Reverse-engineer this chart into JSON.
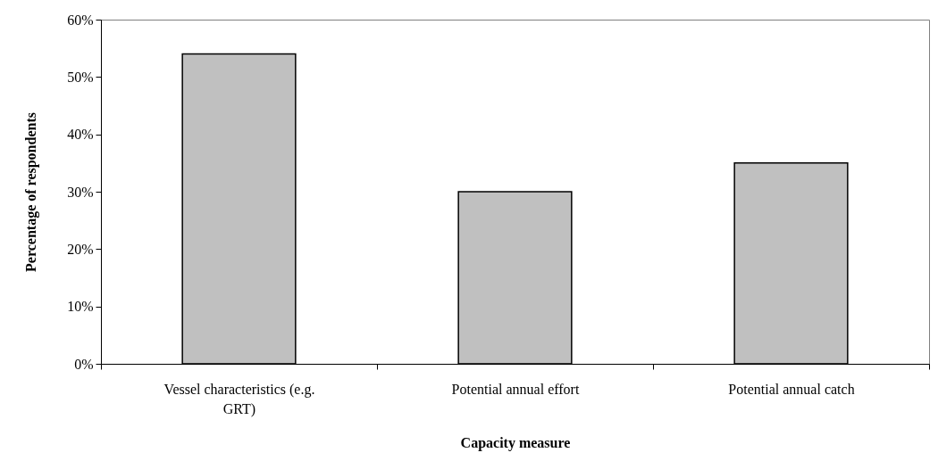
{
  "chart_data": {
    "type": "bar",
    "xlabel": "Capacity measure",
    "ylabel": "Percentage of respondents",
    "categories": [
      "Vessel characteristics (e.g. GRT)",
      "Potential annual effort",
      "Potential annual catch"
    ],
    "values": [
      54,
      30,
      35
    ],
    "color": "#c0c0c0",
    "ylim": [
      0,
      60
    ],
    "yticks": [
      {
        "value": 0,
        "label": "0%"
      },
      {
        "value": 10,
        "label": "10%"
      },
      {
        "value": 20,
        "label": "20%"
      },
      {
        "value": 30,
        "label": "30%"
      },
      {
        "value": 40,
        "label": "40%"
      },
      {
        "value": 50,
        "label": "50%"
      },
      {
        "value": 60,
        "label": "60%"
      }
    ],
    "grid": false
  }
}
